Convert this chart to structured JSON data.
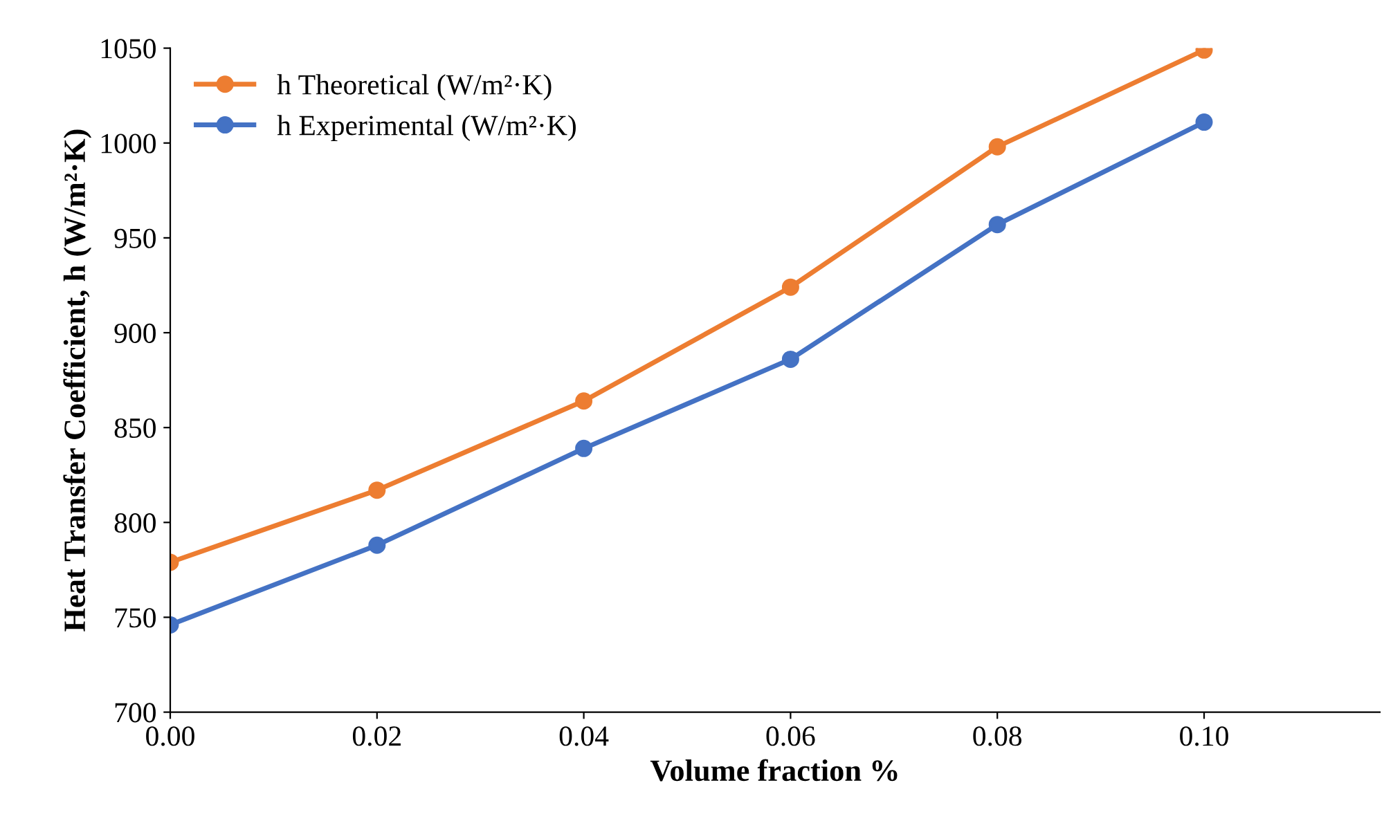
{
  "chart_data": {
    "type": "line",
    "xlabel": "Volume fraction %",
    "ylabel": "Heat Transfer Coefficient, h (W/m²·K)",
    "x": [
      0.0,
      0.02,
      0.04,
      0.06,
      0.08,
      0.1
    ],
    "series": [
      {
        "name": "h Theoretical (W/m²·K)",
        "color": "#ed7d31",
        "values": [
          779,
          817,
          864,
          924,
          998,
          1049
        ]
      },
      {
        "name": "h Experimental (W/m²·K)",
        "color": "#4472c4",
        "values": [
          746,
          788,
          839,
          886,
          957,
          1011
        ]
      }
    ],
    "xlim": [
      0,
      0.117
    ],
    "xticks": [
      {
        "value": 0.0,
        "label": "0.00"
      },
      {
        "value": 0.02,
        "label": "0.02"
      },
      {
        "value": 0.04,
        "label": "0.04"
      },
      {
        "value": 0.06,
        "label": "0.06"
      },
      {
        "value": 0.08,
        "label": "0.08"
      },
      {
        "value": 0.1,
        "label": "0.10"
      }
    ],
    "ylim": [
      700,
      1050
    ],
    "yticks": [
      700,
      750,
      800,
      850,
      900,
      950,
      1000,
      1050
    ],
    "grid": false,
    "legend": "top left",
    "marker": "circle",
    "line_style": "solid"
  }
}
